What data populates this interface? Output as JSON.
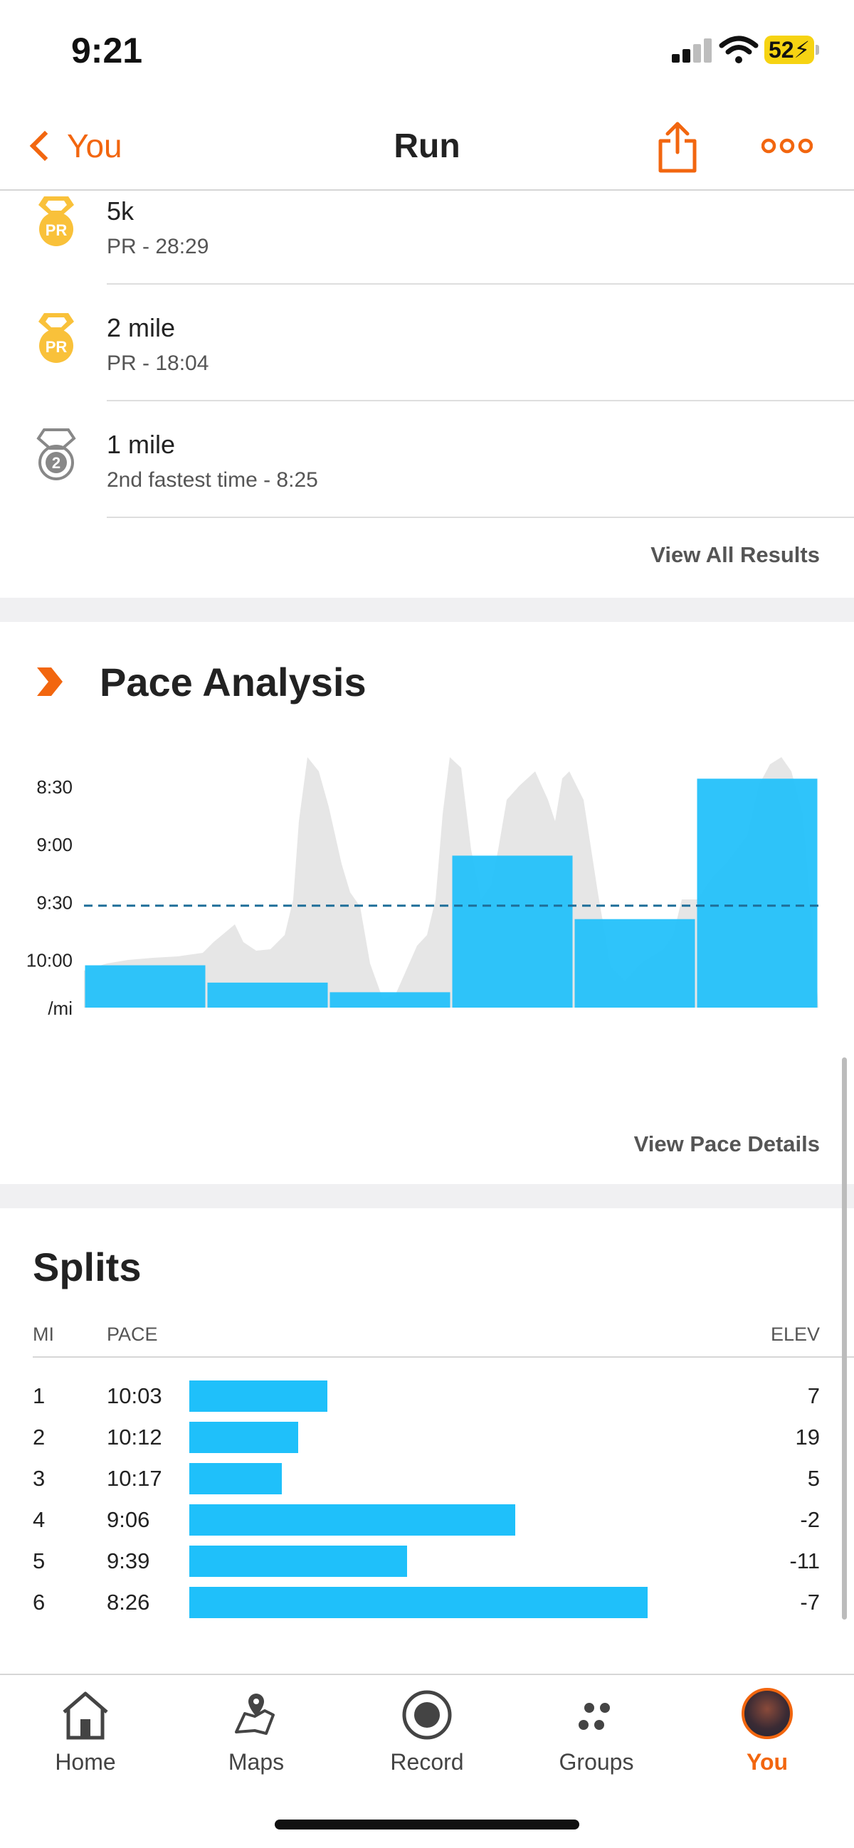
{
  "status_bar": {
    "time": "9:21",
    "battery": "52"
  },
  "nav": {
    "back_label": "You",
    "title": "Run"
  },
  "results": [
    {
      "medal": "pr-medal-icon",
      "title": "5k",
      "subtitle": "PR - 28:29"
    },
    {
      "medal": "pr-medal-icon",
      "title": "2 mile",
      "subtitle": "PR - 18:04"
    },
    {
      "medal": "second-place-medal-icon",
      "title": "1 mile",
      "subtitle": "2nd fastest time - 8:25"
    }
  ],
  "view_all_label": "View All Results",
  "pace_analysis": {
    "title": "Pace Analysis",
    "view_details_label": "View Pace Details",
    "chart_data": {
      "type": "bar",
      "y_axis_inverted": true,
      "ytick_labels": [
        "8:30",
        "9:00",
        "9:30",
        "10:00"
      ],
      "ytick_values_sec": [
        510,
        540,
        570,
        600
      ],
      "unit_label": "/mi",
      "ylim_sec": [
        625,
        480
      ],
      "categories": [
        "1",
        "2",
        "3",
        "4",
        "5",
        "6"
      ],
      "values_sec": [
        603,
        612,
        617,
        546,
        579,
        506
      ],
      "average_line_sec": 572,
      "background_area": "gray pace trace"
    }
  },
  "splits": {
    "title": "Splits",
    "headers": {
      "mi": "MI",
      "pace": "PACE",
      "elev": "ELEV"
    },
    "rows": [
      {
        "mi": "1",
        "pace": "10:03",
        "elev": "7",
        "pace_sec": 603
      },
      {
        "mi": "2",
        "pace": "10:12",
        "elev": "19",
        "pace_sec": 612
      },
      {
        "mi": "3",
        "pace": "10:17",
        "elev": "5",
        "pace_sec": 617
      },
      {
        "mi": "4",
        "pace": "9:06",
        "elev": "-2",
        "pace_sec": 546
      },
      {
        "mi": "5",
        "pace": "9:39",
        "elev": "-11",
        "pace_sec": 579
      },
      {
        "mi": "6",
        "pace": "8:26",
        "elev": "-7",
        "pace_sec": 506
      }
    ]
  },
  "tabs": [
    {
      "label": "Home",
      "icon": "home-icon"
    },
    {
      "label": "Maps",
      "icon": "maps-icon"
    },
    {
      "label": "Record",
      "icon": "record-icon"
    },
    {
      "label": "Groups",
      "icon": "groups-icon"
    },
    {
      "label": "You",
      "icon": "avatar",
      "active": true
    }
  ],
  "colors": {
    "accent": "#f2660f",
    "bar": "#1fc0fa",
    "pr_gold": "#f9c13a",
    "trace_gray": "#e6e6e6"
  }
}
